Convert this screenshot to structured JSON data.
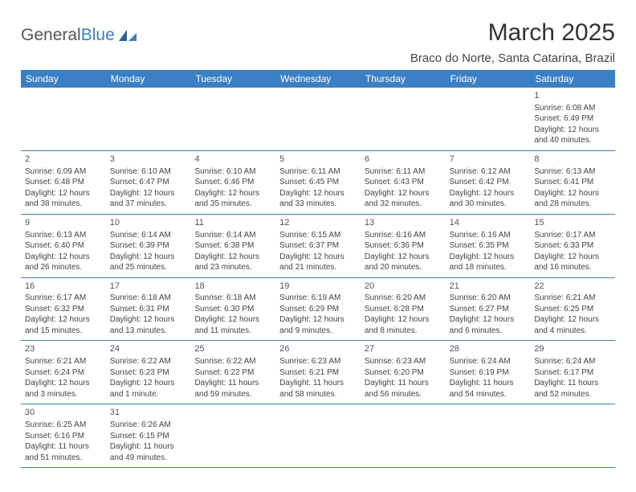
{
  "logo": {
    "text1": "General",
    "text2": "Blue"
  },
  "title": "March 2025",
  "location": "Braco do Norte, Santa Catarina, Brazil",
  "day_headers": [
    "Sunday",
    "Monday",
    "Tuesday",
    "Wednesday",
    "Thursday",
    "Friday",
    "Saturday"
  ],
  "colors": {
    "header_bg": "#3b7fc4",
    "header_text": "#ffffff",
    "border": "#3b7fc4",
    "text": "#444444",
    "title": "#333333"
  },
  "typography": {
    "title_size_pt": 22,
    "location_size_pt": 11,
    "header_size_pt": 9,
    "cell_size_pt": 7.5
  },
  "weeks": [
    [
      null,
      null,
      null,
      null,
      null,
      null,
      {
        "n": "1",
        "sr": "Sunrise: 6:08 AM",
        "ss": "Sunset: 6:49 PM",
        "dl1": "Daylight: 12 hours",
        "dl2": "and 40 minutes."
      }
    ],
    [
      {
        "n": "2",
        "sr": "Sunrise: 6:09 AM",
        "ss": "Sunset: 6:48 PM",
        "dl1": "Daylight: 12 hours",
        "dl2": "and 38 minutes."
      },
      {
        "n": "3",
        "sr": "Sunrise: 6:10 AM",
        "ss": "Sunset: 6:47 PM",
        "dl1": "Daylight: 12 hours",
        "dl2": "and 37 minutes."
      },
      {
        "n": "4",
        "sr": "Sunrise: 6:10 AM",
        "ss": "Sunset: 6:46 PM",
        "dl1": "Daylight: 12 hours",
        "dl2": "and 35 minutes."
      },
      {
        "n": "5",
        "sr": "Sunrise: 6:11 AM",
        "ss": "Sunset: 6:45 PM",
        "dl1": "Daylight: 12 hours",
        "dl2": "and 33 minutes."
      },
      {
        "n": "6",
        "sr": "Sunrise: 6:11 AM",
        "ss": "Sunset: 6:43 PM",
        "dl1": "Daylight: 12 hours",
        "dl2": "and 32 minutes."
      },
      {
        "n": "7",
        "sr": "Sunrise: 6:12 AM",
        "ss": "Sunset: 6:42 PM",
        "dl1": "Daylight: 12 hours",
        "dl2": "and 30 minutes."
      },
      {
        "n": "8",
        "sr": "Sunrise: 6:13 AM",
        "ss": "Sunset: 6:41 PM",
        "dl1": "Daylight: 12 hours",
        "dl2": "and 28 minutes."
      }
    ],
    [
      {
        "n": "9",
        "sr": "Sunrise: 6:13 AM",
        "ss": "Sunset: 6:40 PM",
        "dl1": "Daylight: 12 hours",
        "dl2": "and 26 minutes."
      },
      {
        "n": "10",
        "sr": "Sunrise: 6:14 AM",
        "ss": "Sunset: 6:39 PM",
        "dl1": "Daylight: 12 hours",
        "dl2": "and 25 minutes."
      },
      {
        "n": "11",
        "sr": "Sunrise: 6:14 AM",
        "ss": "Sunset: 6:38 PM",
        "dl1": "Daylight: 12 hours",
        "dl2": "and 23 minutes."
      },
      {
        "n": "12",
        "sr": "Sunrise: 6:15 AM",
        "ss": "Sunset: 6:37 PM",
        "dl1": "Daylight: 12 hours",
        "dl2": "and 21 minutes."
      },
      {
        "n": "13",
        "sr": "Sunrise: 6:16 AM",
        "ss": "Sunset: 6:36 PM",
        "dl1": "Daylight: 12 hours",
        "dl2": "and 20 minutes."
      },
      {
        "n": "14",
        "sr": "Sunrise: 6:16 AM",
        "ss": "Sunset: 6:35 PM",
        "dl1": "Daylight: 12 hours",
        "dl2": "and 18 minutes."
      },
      {
        "n": "15",
        "sr": "Sunrise: 6:17 AM",
        "ss": "Sunset: 6:33 PM",
        "dl1": "Daylight: 12 hours",
        "dl2": "and 16 minutes."
      }
    ],
    [
      {
        "n": "16",
        "sr": "Sunrise: 6:17 AM",
        "ss": "Sunset: 6:32 PM",
        "dl1": "Daylight: 12 hours",
        "dl2": "and 15 minutes."
      },
      {
        "n": "17",
        "sr": "Sunrise: 6:18 AM",
        "ss": "Sunset: 6:31 PM",
        "dl1": "Daylight: 12 hours",
        "dl2": "and 13 minutes."
      },
      {
        "n": "18",
        "sr": "Sunrise: 6:18 AM",
        "ss": "Sunset: 6:30 PM",
        "dl1": "Daylight: 12 hours",
        "dl2": "and 11 minutes."
      },
      {
        "n": "19",
        "sr": "Sunrise: 6:19 AM",
        "ss": "Sunset: 6:29 PM",
        "dl1": "Daylight: 12 hours",
        "dl2": "and 9 minutes."
      },
      {
        "n": "20",
        "sr": "Sunrise: 6:20 AM",
        "ss": "Sunset: 6:28 PM",
        "dl1": "Daylight: 12 hours",
        "dl2": "and 8 minutes."
      },
      {
        "n": "21",
        "sr": "Sunrise: 6:20 AM",
        "ss": "Sunset: 6:27 PM",
        "dl1": "Daylight: 12 hours",
        "dl2": "and 6 minutes."
      },
      {
        "n": "22",
        "sr": "Sunrise: 6:21 AM",
        "ss": "Sunset: 6:25 PM",
        "dl1": "Daylight: 12 hours",
        "dl2": "and 4 minutes."
      }
    ],
    [
      {
        "n": "23",
        "sr": "Sunrise: 6:21 AM",
        "ss": "Sunset: 6:24 PM",
        "dl1": "Daylight: 12 hours",
        "dl2": "and 3 minutes."
      },
      {
        "n": "24",
        "sr": "Sunrise: 6:22 AM",
        "ss": "Sunset: 6:23 PM",
        "dl1": "Daylight: 12 hours",
        "dl2": "and 1 minute."
      },
      {
        "n": "25",
        "sr": "Sunrise: 6:22 AM",
        "ss": "Sunset: 6:22 PM",
        "dl1": "Daylight: 11 hours",
        "dl2": "and 59 minutes."
      },
      {
        "n": "26",
        "sr": "Sunrise: 6:23 AM",
        "ss": "Sunset: 6:21 PM",
        "dl1": "Daylight: 11 hours",
        "dl2": "and 58 minutes."
      },
      {
        "n": "27",
        "sr": "Sunrise: 6:23 AM",
        "ss": "Sunset: 6:20 PM",
        "dl1": "Daylight: 11 hours",
        "dl2": "and 56 minutes."
      },
      {
        "n": "28",
        "sr": "Sunrise: 6:24 AM",
        "ss": "Sunset: 6:19 PM",
        "dl1": "Daylight: 11 hours",
        "dl2": "and 54 minutes."
      },
      {
        "n": "29",
        "sr": "Sunrise: 6:24 AM",
        "ss": "Sunset: 6:17 PM",
        "dl1": "Daylight: 11 hours",
        "dl2": "and 52 minutes."
      }
    ],
    [
      {
        "n": "30",
        "sr": "Sunrise: 6:25 AM",
        "ss": "Sunset: 6:16 PM",
        "dl1": "Daylight: 11 hours",
        "dl2": "and 51 minutes."
      },
      {
        "n": "31",
        "sr": "Sunrise: 6:26 AM",
        "ss": "Sunset: 6:15 PM",
        "dl1": "Daylight: 11 hours",
        "dl2": "and 49 minutes."
      },
      null,
      null,
      null,
      null,
      null
    ]
  ]
}
